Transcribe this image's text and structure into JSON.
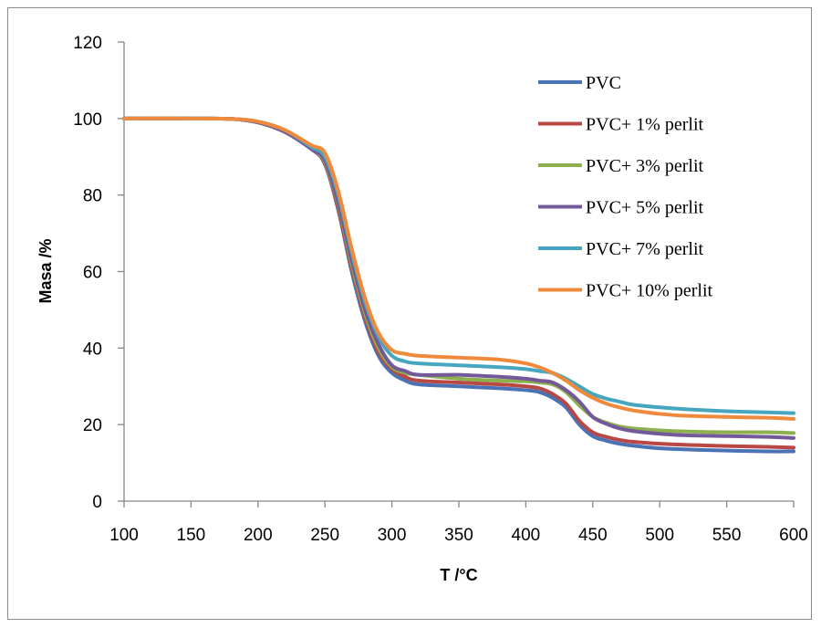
{
  "chart_data": {
    "type": "line",
    "xlabel": "T /°C",
    "ylabel": "Masa /%",
    "xlim": [
      100,
      600
    ],
    "ylim": [
      0,
      120
    ],
    "xticks": [
      100,
      150,
      200,
      250,
      300,
      350,
      400,
      450,
      500,
      550,
      600
    ],
    "yticks": [
      0,
      20,
      40,
      60,
      80,
      100,
      120
    ],
    "grid": false,
    "legend_position": "top-right",
    "series": [
      {
        "name": "PVC",
        "color": "#4a72b5",
        "x": [
          100,
          150,
          180,
          200,
          220,
          240,
          250,
          260,
          270,
          280,
          290,
          300,
          310,
          320,
          350,
          380,
          400,
          410,
          420,
          430,
          440,
          450,
          460,
          470,
          480,
          500,
          520,
          550,
          580,
          600
        ],
        "y": [
          100,
          100,
          99.9,
          99,
          96.5,
          92,
          88,
          76,
          60,
          47,
          38,
          33.5,
          31.5,
          30.5,
          30,
          29.5,
          29,
          28.5,
          27,
          24.5,
          20,
          17,
          15.8,
          15,
          14.5,
          13.8,
          13.5,
          13.2,
          13,
          13
        ]
      },
      {
        "name": "PVC+ 1% perlit",
        "color": "#b94743",
        "x": [
          100,
          150,
          180,
          200,
          220,
          240,
          250,
          260,
          270,
          280,
          290,
          300,
          310,
          320,
          350,
          380,
          400,
          410,
          420,
          430,
          440,
          450,
          460,
          470,
          480,
          500,
          520,
          550,
          580,
          600
        ],
        "y": [
          100,
          100,
          99.9,
          99,
          96.5,
          92,
          88.3,
          76.5,
          61,
          48,
          39,
          34.5,
          32.5,
          31.5,
          31,
          30.5,
          30,
          29.5,
          28,
          25.5,
          21,
          18,
          16.8,
          16,
          15.5,
          15,
          14.7,
          14.4,
          14.2,
          14
        ]
      },
      {
        "name": "PVC+ 3% perlit",
        "color": "#8db04e",
        "x": [
          100,
          150,
          180,
          200,
          220,
          240,
          250,
          260,
          270,
          280,
          290,
          300,
          310,
          320,
          350,
          380,
          400,
          410,
          420,
          430,
          440,
          450,
          460,
          470,
          480,
          500,
          520,
          550,
          580,
          600
        ],
        "y": [
          100,
          100,
          99.9,
          99,
          96.5,
          92,
          88.6,
          77.5,
          62,
          49,
          40,
          35,
          33.5,
          33,
          32,
          31.5,
          31.3,
          31,
          30.5,
          28.5,
          25,
          22,
          20.5,
          19.5,
          19,
          18.5,
          18.2,
          18,
          18,
          17.8
        ]
      },
      {
        "name": "PVC+ 5% perlit",
        "color": "#73589a",
        "x": [
          100,
          150,
          180,
          200,
          220,
          240,
          250,
          260,
          270,
          280,
          290,
          300,
          310,
          320,
          350,
          380,
          400,
          410,
          420,
          430,
          440,
          450,
          460,
          470,
          480,
          500,
          520,
          550,
          580,
          600
        ],
        "y": [
          100,
          100,
          99.9,
          99,
          96.5,
          92,
          89,
          78,
          63,
          50,
          41,
          35.5,
          34,
          33,
          33,
          32.5,
          32,
          31.5,
          31,
          29,
          26,
          22,
          20.2,
          19,
          18.3,
          17.6,
          17.2,
          17,
          16.8,
          16.5
        ]
      },
      {
        "name": "PVC+ 7% perlit",
        "color": "#46a6bf",
        "x": [
          100,
          150,
          180,
          200,
          220,
          240,
          250,
          260,
          270,
          280,
          290,
          300,
          310,
          320,
          350,
          380,
          400,
          410,
          420,
          430,
          440,
          450,
          460,
          470,
          480,
          500,
          520,
          550,
          580,
          600
        ],
        "y": [
          100,
          100,
          99.9,
          99.2,
          97,
          92.5,
          90,
          80,
          65,
          52,
          43,
          38,
          36.5,
          36,
          35.5,
          35,
          34.5,
          34,
          33.5,
          32,
          30,
          28,
          26.8,
          26,
          25.2,
          24.5,
          24,
          23.5,
          23.2,
          23
        ]
      },
      {
        "name": "PVC+ 10% perlit",
        "color": "#ef8a3c",
        "x": [
          100,
          150,
          180,
          200,
          220,
          240,
          250,
          260,
          270,
          280,
          290,
          300,
          310,
          320,
          350,
          380,
          400,
          410,
          420,
          430,
          440,
          450,
          460,
          470,
          480,
          500,
          520,
          550,
          580,
          600
        ],
        "y": [
          100,
          100,
          99.9,
          99.2,
          97,
          93,
          91,
          81,
          66,
          53,
          44,
          39.5,
          38.5,
          38,
          37.5,
          37,
          36,
          35,
          33.5,
          31.5,
          29,
          27,
          25.5,
          24.5,
          23.7,
          22.8,
          22.3,
          22,
          21.8,
          21.5
        ]
      }
    ]
  }
}
